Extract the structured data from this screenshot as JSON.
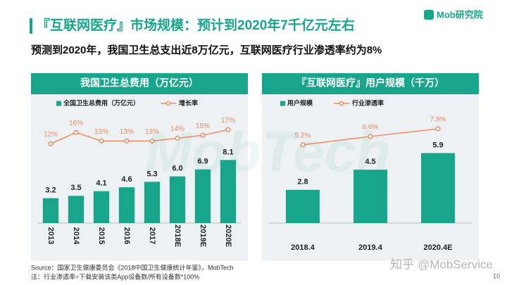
{
  "slide": {
    "title": "『互联网医疗』市场规模：预计到2020年7千亿元左右",
    "subtitle": "预测到2020年，我国卫生总支出近8万亿元，互联网医疗行业渗透率约为8%",
    "logo": "Mob研究院",
    "watermark": "MobTech",
    "credit": "知乎 @MobService",
    "source": "Source：国家卫生健康委员会《2018中国卫生健康统计年鉴》，MobTech",
    "note": "注：行业渗透率=下载安装该类App设备数/所有设备数*100%",
    "page": "10"
  },
  "chart_data": [
    {
      "type": "bar",
      "title": "我国卫生总费用（万亿元）",
      "categories": [
        "2013",
        "2014",
        "2015",
        "2016",
        "2017",
        "2018E",
        "2019E",
        "2020E"
      ],
      "ylim": [
        0,
        16
      ],
      "y2lim": [
        -16,
        28
      ],
      "series": [
        {
          "name": "全国卫生总费用（万亿元）",
          "type": "bar",
          "color": "#17a58b",
          "values": [
            3.2,
            3.5,
            4.1,
            4.6,
            5.3,
            6.0,
            6.9,
            8.1
          ],
          "value_labels": [
            "3.2",
            "3.5",
            "4.1",
            "4.6",
            "5.3",
            "6.0",
            "6.9",
            "8.1"
          ]
        },
        {
          "name": "增长率",
          "type": "line",
          "axis": "y2",
          "color": "#f08a5d",
          "values": [
            12,
            16,
            13,
            13,
            13,
            14,
            15,
            17
          ],
          "value_labels": [
            "12%",
            "16%",
            "13%",
            "13%",
            "13%",
            "14%",
            "15%",
            "17%"
          ]
        }
      ]
    },
    {
      "type": "bar",
      "title": "『互联网医疗』用户规模（千万）",
      "categories": [
        "2018.4",
        "2019.4",
        "2020.4E"
      ],
      "ylim": [
        0,
        10.5
      ],
      "y2lim": [
        -8,
        13
      ],
      "series": [
        {
          "name": "用户规模",
          "type": "bar",
          "color": "#17a58b",
          "values": [
            2.8,
            4.5,
            5.9
          ],
          "value_labels": [
            "2.8",
            "4.5",
            "5.9"
          ]
        },
        {
          "name": "行业渗透率",
          "type": "line",
          "axis": "y2",
          "color": "#f08a5d",
          "values": [
            5.2,
            6.6,
            7.9
          ],
          "value_labels": [
            "5.2%",
            "6.6%",
            "7.9%"
          ]
        }
      ]
    }
  ]
}
